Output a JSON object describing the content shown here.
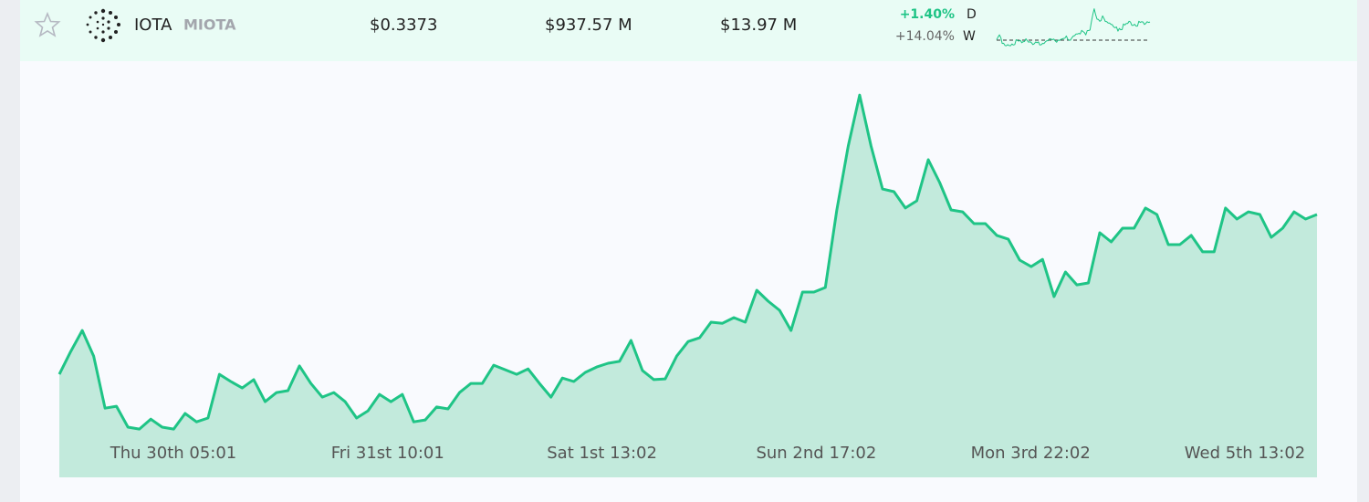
{
  "asset": {
    "name": "IOTA",
    "symbol": "MIOTA",
    "price": "$0.3373",
    "market_cap": "$937.57 M",
    "volume": "$13.97 M",
    "change_day": "+1.40%",
    "change_day_label": "D",
    "change_week": "+14.04%",
    "change_week_label": "W"
  },
  "chart_data": {
    "type": "area",
    "color": "#1fc486",
    "fill": "#c2eadc",
    "ylim": [
      0.2682,
      0.3721
    ],
    "x_tick_labels": [
      "Thu 30th 05:01",
      "Fri 31st 10:01",
      "Sat 1st 13:02",
      "Sun 2nd 17:02",
      "Mon 3rd 22:02",
      "Wed 5th 13:02"
    ],
    "values": [
      0.2953,
      0.3013,
      0.3068,
      0.3001,
      0.2864,
      0.2869,
      0.2814,
      0.2809,
      0.2835,
      0.2814,
      0.2809,
      0.285,
      0.2828,
      0.2838,
      0.2953,
      0.2934,
      0.2917,
      0.2939,
      0.2881,
      0.2905,
      0.291,
      0.2975,
      0.2929,
      0.2893,
      0.2905,
      0.2881,
      0.2838,
      0.2857,
      0.29,
      0.2881,
      0.29,
      0.2828,
      0.2833,
      0.2867,
      0.2862,
      0.2905,
      0.2929,
      0.2929,
      0.2977,
      0.2965,
      0.2953,
      0.2967,
      0.2929,
      0.2893,
      0.2943,
      0.2934,
      0.2958,
      0.2972,
      0.2982,
      0.2987,
      0.3042,
      0.2963,
      0.2939,
      0.2941,
      0.3001,
      0.3039,
      0.3049,
      0.309,
      0.3087,
      0.3102,
      0.309,
      0.3174,
      0.3145,
      0.3121,
      0.3068,
      0.3169,
      0.3169,
      0.3181,
      0.3385,
      0.3553,
      0.3687,
      0.3553,
      0.344,
      0.3433,
      0.339,
      0.3409,
      0.3517,
      0.3457,
      0.3385,
      0.338,
      0.3349,
      0.3349,
      0.3318,
      0.3308,
      0.3253,
      0.3236,
      0.3255,
      0.3157,
      0.3222,
      0.3188,
      0.3193,
      0.3325,
      0.3301,
      0.3337,
      0.3337,
      0.339,
      0.3373,
      0.3294,
      0.3294,
      0.3318,
      0.3275,
      0.3275,
      0.339,
      0.3361,
      0.338,
      0.3373,
      0.3313,
      0.3337,
      0.338,
      0.3361,
      0.3373
    ]
  }
}
